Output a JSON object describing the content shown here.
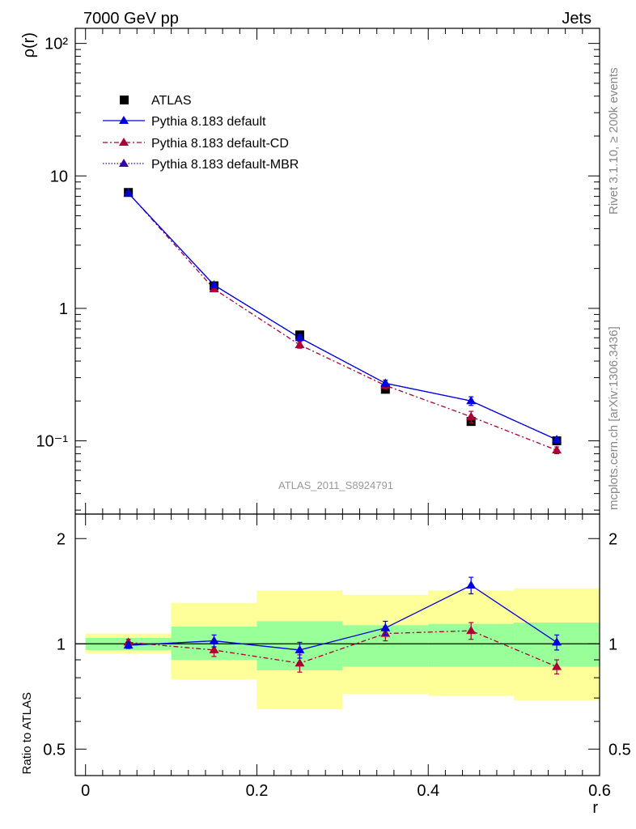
{
  "header": {
    "energy_label": "7000 GeV pp",
    "process_label": "Jets"
  },
  "side": {
    "rivet_label": "Rivet 3.1.10, ≥ 200k events",
    "source_label": "mcplots.cern.ch [arXiv:1306.3436]"
  },
  "analysis_id": "ATLAS_2011_S8924791",
  "colors": {
    "atlas": "#000000",
    "default": "#0000dd",
    "cd": "#aa0033",
    "mbr": "#3300aa",
    "band_inner": "#99ff99",
    "band_outer": "#ffff99"
  },
  "chart_data": [
    {
      "type": "line",
      "name": "main",
      "ylabel": "ρ(r)",
      "yscale": "log",
      "ylim": [
        0.028,
        130
      ],
      "xlim": [
        -0.012,
        0.6
      ],
      "ytick_labels": [
        "10⁻¹",
        "1",
        "10",
        "10²"
      ],
      "ytick_values": [
        0.1,
        1,
        10,
        100
      ],
      "legend": [
        "ATLAS",
        "Pythia 8.183 default",
        "Pythia 8.183 default-CD",
        "Pythia 8.183 default-MBR"
      ],
      "x": [
        0.05,
        0.15,
        0.25,
        0.35,
        0.45,
        0.55
      ],
      "series": [
        {
          "name": "ATLAS",
          "values": [
            7.5,
            1.48,
            0.63,
            0.245,
            0.14,
            0.1
          ]
        },
        {
          "name": "Pythia 8.183 default",
          "values": [
            7.4,
            1.5,
            0.6,
            0.272,
            0.2,
            0.102
          ],
          "errors": [
            0.15,
            0.05,
            0.03,
            0.015,
            0.015,
            0.005
          ]
        },
        {
          "name": "Pythia 8.183 default-CD",
          "values": [
            7.45,
            1.4,
            0.53,
            0.262,
            0.152,
            0.085
          ],
          "errors": [
            0.15,
            0.05,
            0.03,
            0.015,
            0.015,
            0.005
          ]
        },
        {
          "name": "Pythia 8.183 default-MBR",
          "values": [
            7.4,
            1.5,
            0.6,
            0.272,
            0.2,
            0.102
          ]
        }
      ]
    },
    {
      "type": "line",
      "name": "ratio",
      "ylabel": "Ratio to ATLAS",
      "xlabel": "r",
      "yscale": "log",
      "ylim": [
        0.42,
        2.35
      ],
      "xlim": [
        -0.012,
        0.6
      ],
      "ytick_labels": [
        "0.5",
        "1",
        "2"
      ],
      "ytick_values": [
        0.5,
        1,
        2
      ],
      "xtick_labels": [
        "0",
        "0.2",
        "0.4",
        "0.6"
      ],
      "xtick_values": [
        0,
        0.2,
        0.4,
        0.6
      ],
      "x": [
        0.05,
        0.15,
        0.25,
        0.35,
        0.45,
        0.55
      ],
      "bins": [
        [
          0,
          0.1
        ],
        [
          0.1,
          0.2
        ],
        [
          0.2,
          0.3
        ],
        [
          0.3,
          0.4
        ],
        [
          0.4,
          0.5
        ],
        [
          0.5,
          0.6
        ]
      ],
      "band_inner": [
        [
          0.96,
          1.04
        ],
        [
          0.9,
          1.12
        ],
        [
          0.84,
          1.16
        ],
        [
          0.86,
          1.13
        ],
        [
          0.86,
          1.14
        ],
        [
          0.86,
          1.15
        ]
      ],
      "band_outer": [
        [
          0.94,
          1.07
        ],
        [
          0.79,
          1.31
        ],
        [
          0.65,
          1.42
        ],
        [
          0.72,
          1.38
        ],
        [
          0.71,
          1.42
        ],
        [
          0.69,
          1.44
        ]
      ],
      "series": [
        {
          "name": "Pythia 8.183 default",
          "values": [
            0.99,
            1.02,
            0.96,
            1.11,
            1.47,
            1.01
          ],
          "errors": [
            0.02,
            0.04,
            0.05,
            0.05,
            0.08,
            0.05
          ]
        },
        {
          "name": "Pythia 8.183 default-CD",
          "values": [
            1.01,
            0.96,
            0.88,
            1.07,
            1.09,
            0.86
          ],
          "errors": [
            0.02,
            0.04,
            0.05,
            0.05,
            0.06,
            0.04
          ]
        }
      ]
    }
  ]
}
